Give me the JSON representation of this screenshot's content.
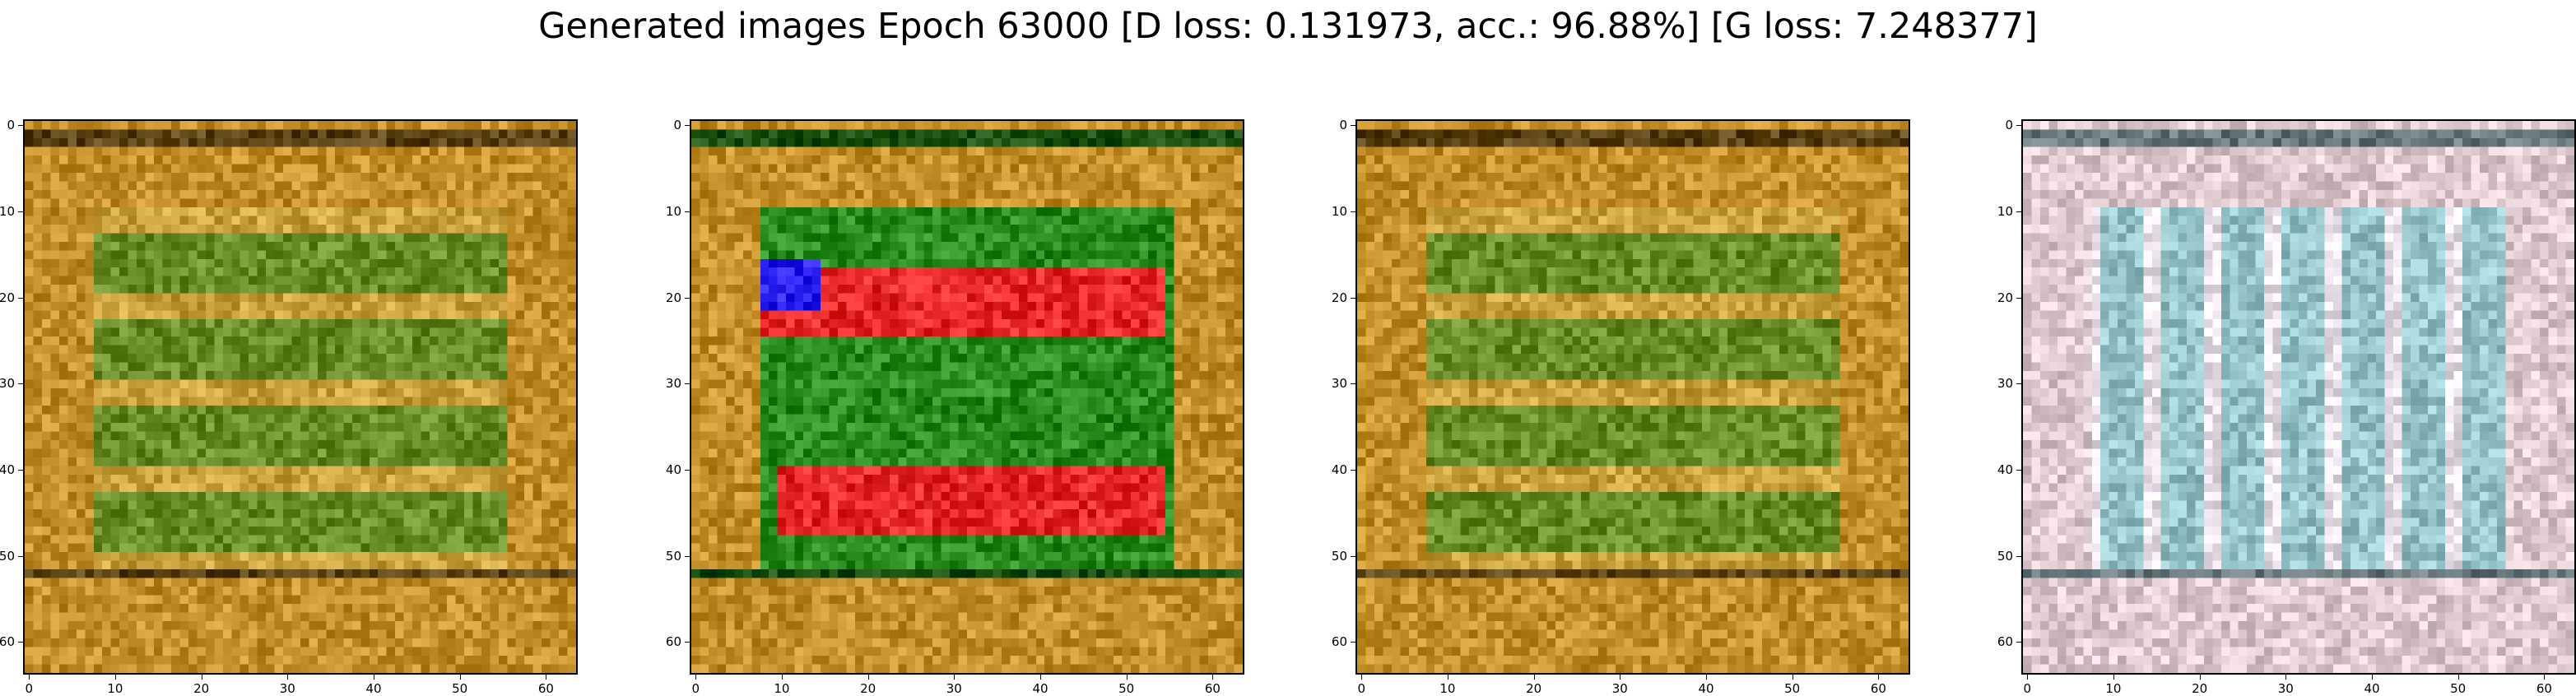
{
  "title": "Generated images Epoch 63000 [D loss: 0.131973, acc.: 96.88%] [G loss: 7.248377]",
  "axis": {
    "x_ticks": [
      "0",
      "10",
      "20",
      "30",
      "40",
      "50",
      "60"
    ],
    "y_ticks": [
      "0",
      "10",
      "20",
      "30",
      "40",
      "50",
      "60"
    ],
    "range": [
      0,
      64
    ]
  },
  "panels": [
    {
      "name": "generated-image-1",
      "palette": "golden-green"
    },
    {
      "name": "generated-image-2",
      "palette": "red-green-blue"
    },
    {
      "name": "generated-image-3",
      "palette": "golden-green"
    },
    {
      "name": "generated-image-4",
      "palette": "pale-cyan"
    }
  ]
}
